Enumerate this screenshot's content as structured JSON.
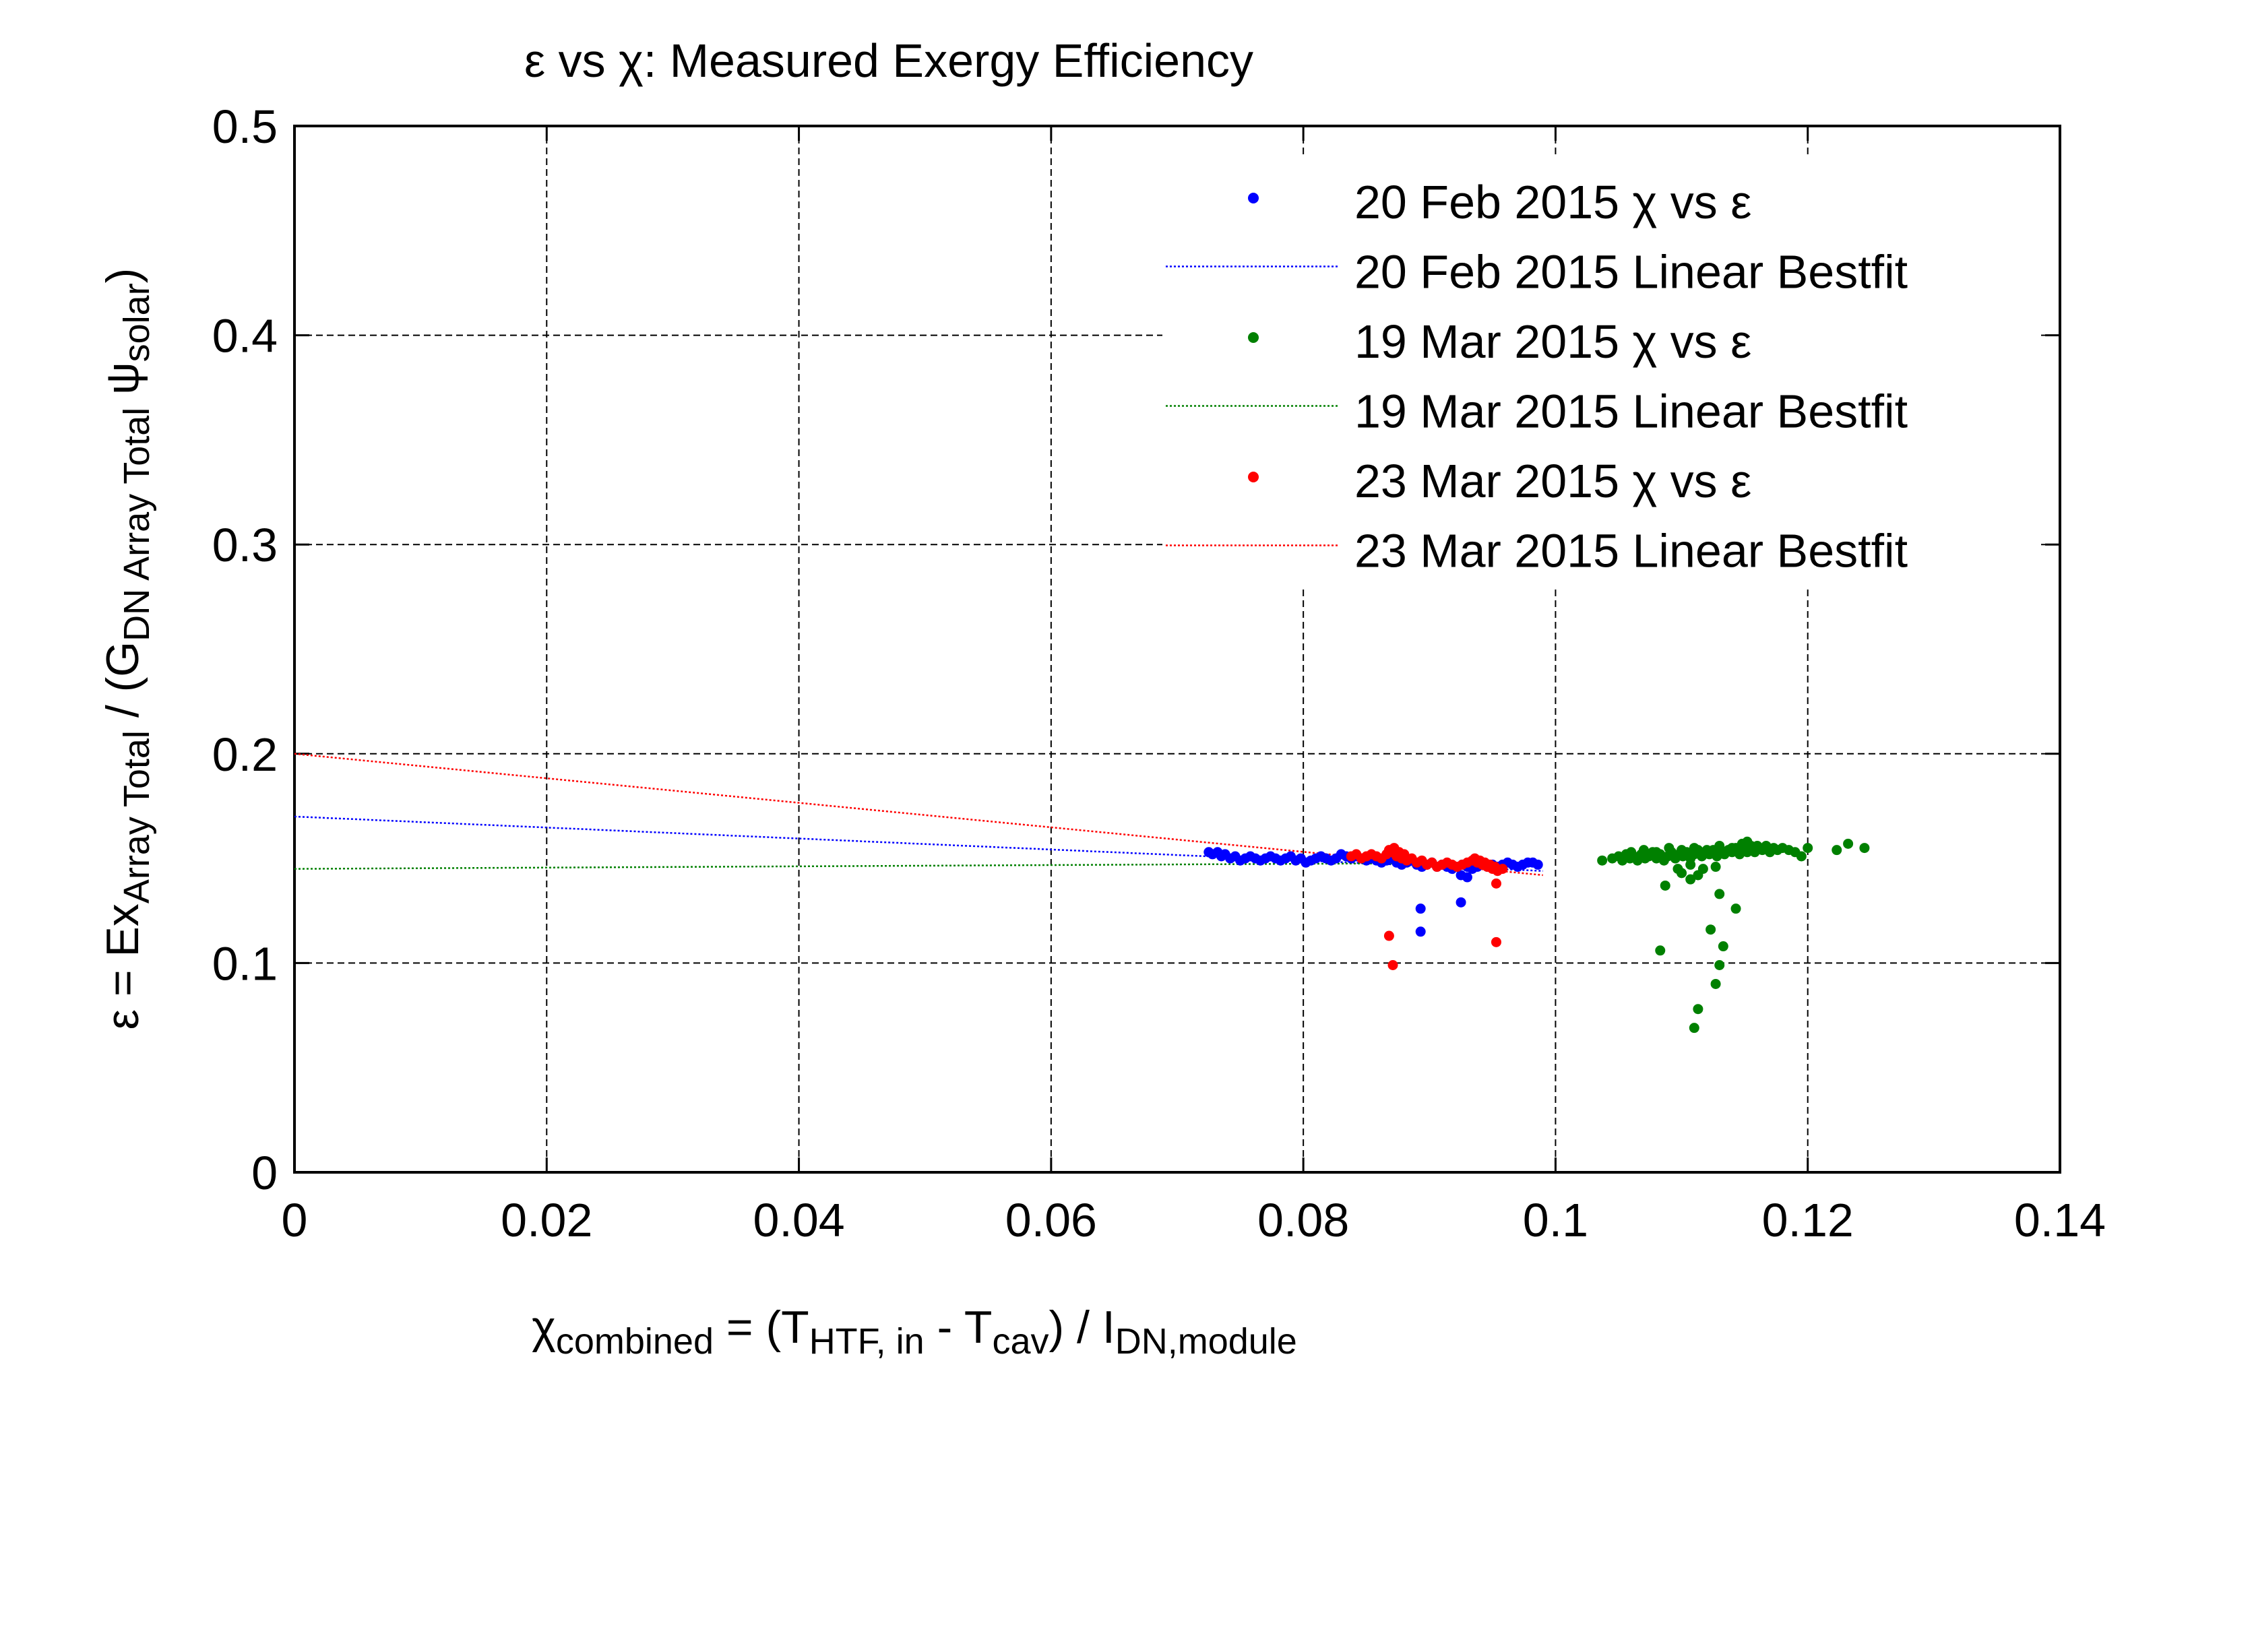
{
  "chart_data": {
    "type": "scatter",
    "title": "ε vs χ: Measured Exergy Efficiency",
    "xlabel": {
      "parts": [
        {
          "t": "χ",
          "s": "n"
        },
        {
          "t": "combined",
          "s": "sub"
        },
        {
          "t": " = (T",
          "s": "n"
        },
        {
          "t": "HTF, in",
          "s": "sub"
        },
        {
          "t": " - T",
          "s": "n"
        },
        {
          "t": "cav",
          "s": "sub"
        },
        {
          "t": ") / I",
          "s": "n"
        },
        {
          "t": "DN,module",
          "s": "sub"
        }
      ]
    },
    "ylabel": {
      "parts": [
        {
          "t": "ε = Ex",
          "s": "n"
        },
        {
          "t": "Array Total",
          "s": "sub"
        },
        {
          "t": " / (G",
          "s": "n"
        },
        {
          "t": "DN Array Total",
          "s": "sub"
        },
        {
          "t": " ψ",
          "s": "n"
        },
        {
          "t": "solar",
          "s": "sub"
        },
        {
          "t": ")",
          "s": "n"
        }
      ]
    },
    "xlim": [
      0,
      0.14
    ],
    "ylim": [
      0,
      0.5
    ],
    "xticks": [
      0,
      0.02,
      0.04,
      0.06,
      0.08,
      0.1,
      0.12,
      0.14
    ],
    "xticklabels": [
      "0",
      "0.02",
      "0.04",
      "0.06",
      "0.08",
      "0.1",
      "0.12",
      "0.14"
    ],
    "yticks": [
      0,
      0.1,
      0.2,
      0.3,
      0.4,
      0.5
    ],
    "yticklabels": [
      "0",
      "0.1",
      "0.2",
      "0.3",
      "0.4",
      "0.5"
    ],
    "grid": true,
    "legend_position": "top-right",
    "legend": [
      {
        "label": "20 Feb 2015 χ vs ε",
        "kind": "marker",
        "color": "#0000ff"
      },
      {
        "label": "20 Feb 2015 Linear Bestfit",
        "kind": "line",
        "color": "#0000ff"
      },
      {
        "label": "19 Mar 2015 χ vs ε",
        "kind": "marker",
        "color": "#008000"
      },
      {
        "label": "19 Mar 2015 Linear Bestfit",
        "kind": "line",
        "color": "#008000"
      },
      {
        "label": "23 Mar 2015 χ vs ε",
        "kind": "marker",
        "color": "#ff0000"
      },
      {
        "label": "23 Mar 2015 Linear Bestfit",
        "kind": "line",
        "color": "#ff0000"
      }
    ],
    "fits": [
      {
        "color": "#0000ff",
        "x": [
          0,
          0.099
        ],
        "y": [
          0.17,
          0.144
        ]
      },
      {
        "color": "#008000",
        "x": [
          0,
          0.099
        ],
        "y": [
          0.145,
          0.148
        ]
      },
      {
        "color": "#ff0000",
        "x": [
          0,
          0.099
        ],
        "y": [
          0.2,
          0.142
        ]
      }
    ],
    "series": [
      {
        "color": "#0000ff",
        "points": [
          [
            0.0725,
            0.153
          ],
          [
            0.0728,
            0.152
          ],
          [
            0.0732,
            0.153
          ],
          [
            0.0735,
            0.151
          ],
          [
            0.0738,
            0.152
          ],
          [
            0.0742,
            0.15
          ],
          [
            0.0746,
            0.151
          ],
          [
            0.075,
            0.149
          ],
          [
            0.0754,
            0.15
          ],
          [
            0.0758,
            0.151
          ],
          [
            0.0762,
            0.15
          ],
          [
            0.0766,
            0.149
          ],
          [
            0.077,
            0.15
          ],
          [
            0.0774,
            0.151
          ],
          [
            0.0778,
            0.15
          ],
          [
            0.0782,
            0.149
          ],
          [
            0.0786,
            0.15
          ],
          [
            0.079,
            0.151
          ],
          [
            0.0794,
            0.149
          ],
          [
            0.0798,
            0.15
          ],
          [
            0.0802,
            0.148
          ],
          [
            0.0806,
            0.149
          ],
          [
            0.081,
            0.15
          ],
          [
            0.0814,
            0.151
          ],
          [
            0.0818,
            0.15
          ],
          [
            0.0822,
            0.149
          ],
          [
            0.0826,
            0.15
          ],
          [
            0.083,
            0.152
          ],
          [
            0.0834,
            0.151
          ],
          [
            0.0838,
            0.15
          ],
          [
            0.0842,
            0.151
          ],
          [
            0.0846,
            0.15
          ],
          [
            0.085,
            0.149
          ],
          [
            0.0854,
            0.15
          ],
          [
            0.0858,
            0.149
          ],
          [
            0.0862,
            0.148
          ],
          [
            0.0866,
            0.149
          ],
          [
            0.087,
            0.15
          ],
          [
            0.0874,
            0.148
          ],
          [
            0.0878,
            0.147
          ],
          [
            0.0882,
            0.148
          ],
          [
            0.0886,
            0.149
          ],
          [
            0.089,
            0.147
          ],
          [
            0.0894,
            0.146
          ],
          [
            0.0898,
            0.147
          ],
          [
            0.0902,
            0.148
          ],
          [
            0.0906,
            0.146
          ],
          [
            0.091,
            0.147
          ],
          [
            0.0914,
            0.146
          ],
          [
            0.0918,
            0.145
          ],
          [
            0.0922,
            0.146
          ],
          [
            0.0926,
            0.147
          ],
          [
            0.093,
            0.146
          ],
          [
            0.0934,
            0.145
          ],
          [
            0.0938,
            0.146
          ],
          [
            0.0942,
            0.147
          ],
          [
            0.0946,
            0.146
          ],
          [
            0.095,
            0.147
          ],
          [
            0.0954,
            0.146
          ],
          [
            0.0958,
            0.147
          ],
          [
            0.0962,
            0.148
          ],
          [
            0.0966,
            0.147
          ],
          [
            0.097,
            0.146
          ],
          [
            0.0974,
            0.147
          ],
          [
            0.0978,
            0.148
          ],
          [
            0.0982,
            0.148
          ],
          [
            0.0986,
            0.147
          ],
          [
            0.0925,
            0.142
          ],
          [
            0.093,
            0.141
          ],
          [
            0.0893,
            0.126
          ],
          [
            0.0925,
            0.129
          ],
          [
            0.0893,
            0.115
          ]
        ]
      },
      {
        "color": "#008000",
        "points": [
          [
            0.1037,
            0.149
          ],
          [
            0.1045,
            0.15
          ],
          [
            0.105,
            0.151
          ],
          [
            0.1053,
            0.149
          ],
          [
            0.1056,
            0.152
          ],
          [
            0.1059,
            0.15
          ],
          [
            0.1062,
            0.151
          ],
          [
            0.1065,
            0.149
          ],
          [
            0.1068,
            0.152
          ],
          [
            0.1071,
            0.15
          ],
          [
            0.1074,
            0.151
          ],
          [
            0.1077,
            0.153
          ],
          [
            0.108,
            0.15
          ],
          [
            0.1083,
            0.152
          ],
          [
            0.1086,
            0.149
          ],
          [
            0.1089,
            0.151
          ],
          [
            0.1092,
            0.153
          ],
          [
            0.1095,
            0.15
          ],
          [
            0.1098,
            0.152
          ],
          [
            0.1101,
            0.151
          ],
          [
            0.1104,
            0.153
          ],
          [
            0.1107,
            0.15
          ],
          [
            0.111,
            0.152
          ],
          [
            0.1113,
            0.154
          ],
          [
            0.1116,
            0.151
          ],
          [
            0.1119,
            0.153
          ],
          [
            0.1122,
            0.152
          ],
          [
            0.1125,
            0.154
          ],
          [
            0.1128,
            0.151
          ],
          [
            0.1131,
            0.153
          ],
          [
            0.1134,
            0.152
          ],
          [
            0.1137,
            0.154
          ],
          [
            0.114,
            0.153
          ],
          [
            0.1143,
            0.155
          ],
          [
            0.1146,
            0.152
          ],
          [
            0.1149,
            0.154
          ],
          [
            0.1152,
            0.153
          ],
          [
            0.1155,
            0.156
          ],
          [
            0.1158,
            0.153
          ],
          [
            0.1161,
            0.155
          ],
          [
            0.1164,
            0.154
          ],
          [
            0.1167,
            0.156
          ],
          [
            0.117,
            0.153
          ],
          [
            0.1173,
            0.155
          ],
          [
            0.1176,
            0.154
          ],
          [
            0.118,
            0.155
          ],
          [
            0.1185,
            0.154
          ],
          [
            0.119,
            0.153
          ],
          [
            0.1195,
            0.151
          ],
          [
            0.12,
            0.155
          ],
          [
            0.1223,
            0.154
          ],
          [
            0.1232,
            0.157
          ],
          [
            0.1245,
            0.155
          ],
          [
            0.1152,
            0.158
          ],
          [
            0.1148,
            0.157
          ],
          [
            0.106,
            0.153
          ],
          [
            0.107,
            0.154
          ],
          [
            0.108,
            0.153
          ],
          [
            0.109,
            0.155
          ],
          [
            0.11,
            0.154
          ],
          [
            0.111,
            0.155
          ],
          [
            0.112,
            0.154
          ],
          [
            0.113,
            0.156
          ],
          [
            0.114,
            0.155
          ],
          [
            0.116,
            0.156
          ],
          [
            0.1097,
            0.145
          ],
          [
            0.1107,
            0.147
          ],
          [
            0.1117,
            0.145
          ],
          [
            0.1127,
            0.146
          ],
          [
            0.1113,
            0.142
          ],
          [
            0.11,
            0.143
          ],
          [
            0.1087,
            0.137
          ],
          [
            0.1107,
            0.14
          ],
          [
            0.113,
            0.133
          ],
          [
            0.1143,
            0.126
          ],
          [
            0.1083,
            0.106
          ],
          [
            0.1123,
            0.116
          ],
          [
            0.1133,
            0.108
          ],
          [
            0.113,
            0.099
          ],
          [
            0.1127,
            0.09
          ],
          [
            0.1113,
            0.078
          ],
          [
            0.111,
            0.069
          ]
        ]
      },
      {
        "color": "#ff0000",
        "points": [
          [
            0.0838,
            0.151
          ],
          [
            0.0842,
            0.152
          ],
          [
            0.0846,
            0.15
          ],
          [
            0.085,
            0.151
          ],
          [
            0.0854,
            0.152
          ],
          [
            0.0858,
            0.151
          ],
          [
            0.0862,
            0.15
          ],
          [
            0.0866,
            0.152
          ],
          [
            0.087,
            0.153
          ],
          [
            0.0874,
            0.151
          ],
          [
            0.0878,
            0.15
          ],
          [
            0.0882,
            0.149
          ],
          [
            0.0886,
            0.15
          ],
          [
            0.089,
            0.148
          ],
          [
            0.0894,
            0.149
          ],
          [
            0.0898,
            0.147
          ],
          [
            0.0902,
            0.148
          ],
          [
            0.0906,
            0.146
          ],
          [
            0.091,
            0.147
          ],
          [
            0.0914,
            0.148
          ],
          [
            0.0918,
            0.147
          ],
          [
            0.0922,
            0.146
          ],
          [
            0.0926,
            0.147
          ],
          [
            0.093,
            0.148
          ],
          [
            0.0934,
            0.149
          ],
          [
            0.0938,
            0.148
          ],
          [
            0.0942,
            0.147
          ],
          [
            0.0946,
            0.146
          ],
          [
            0.095,
            0.145
          ],
          [
            0.0954,
            0.144
          ],
          [
            0.0958,
            0.145
          ],
          [
            0.0868,
            0.154
          ],
          [
            0.0872,
            0.155
          ],
          [
            0.0876,
            0.153
          ],
          [
            0.088,
            0.152
          ],
          [
            0.0936,
            0.15
          ],
          [
            0.094,
            0.149
          ],
          [
            0.0944,
            0.148
          ],
          [
            0.0948,
            0.147
          ],
          [
            0.0952,
            0.146
          ],
          [
            0.0953,
            0.138
          ],
          [
            0.0868,
            0.113
          ],
          [
            0.0871,
            0.099
          ],
          [
            0.0953,
            0.11
          ]
        ]
      }
    ]
  }
}
